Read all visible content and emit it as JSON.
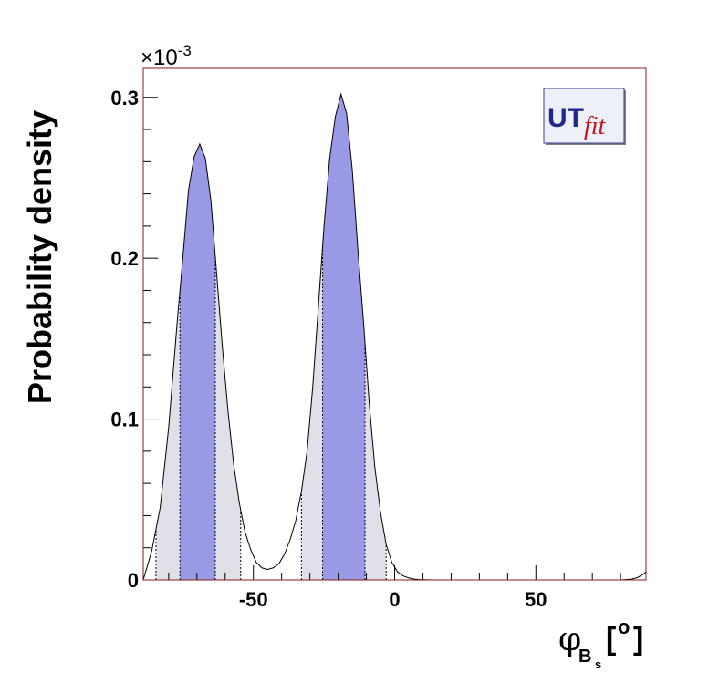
{
  "chart_data": {
    "type": "area",
    "title": "",
    "xlabel_symbol": "φ",
    "xlabel_sub": "B",
    "xlabel_subsub": "s",
    "xlabel_unit_open": "[",
    "xlabel_unit_sup": "o",
    "xlabel_unit_close": "]",
    "ylabel": "Probability density",
    "exponent_label": "×10",
    "exponent_power": "-3",
    "xlim": [
      -89,
      89
    ],
    "ylim": [
      0,
      0.000318
    ],
    "x_ticks": [
      -50,
      0,
      50
    ],
    "x_tick_labels": [
      "-50",
      "0",
      "50"
    ],
    "y_ticks": [
      0,
      0.0001,
      0.0002,
      0.0003
    ],
    "y_tick_labels": [
      "0",
      "0.1",
      "0.2",
      "0.3"
    ],
    "grid": false,
    "legend": "none",
    "colors": {
      "curve": "#000000",
      "region_68": "#9999e6",
      "region_95": "#dfe0e8",
      "frame": "#8b1a1a"
    },
    "series": [
      {
        "x": [
          -89,
          -86,
          -83,
          -80,
          -77,
          -75,
          -73,
          -71,
          -69,
          -67,
          -65,
          -63,
          -61,
          -59,
          -57,
          -55,
          -53,
          -51,
          -49,
          -47,
          -45,
          -43,
          -41,
          -39,
          -37,
          -35,
          -33,
          -31,
          -29,
          -27,
          -25,
          -23,
          -21,
          -19,
          -17,
          -15,
          -13,
          -11,
          -9,
          -7,
          -5,
          -3,
          -1,
          1,
          3,
          5,
          7,
          9,
          12,
          15,
          20,
          30,
          40,
          50,
          60,
          70,
          80,
          84,
          86,
          88,
          89
        ],
        "y": [
          0.0,
          1.8e-05,
          4.5e-05,
          9.5e-05,
          0.00016,
          0.0002,
          0.000242,
          0.000263,
          0.000271,
          0.000262,
          0.000235,
          0.00019,
          0.000145,
          0.000105,
          7.2e-05,
          4.8e-05,
          3e-05,
          1.9e-05,
          1.1e-05,
          7.5e-06,
          6.5e-06,
          7.5e-06,
          1e-05,
          1.6e-05,
          2.5e-05,
          3.7e-05,
          5.5e-05,
          8e-05,
          0.00012,
          0.00017,
          0.00022,
          0.000262,
          0.000288,
          0.000302,
          0.00029,
          0.000255,
          0.000205,
          0.00016,
          0.00011,
          7e-05,
          4.2e-05,
          2.2e-05,
          1.1e-05,
          5e-06,
          2.5e-06,
          1.2e-06,
          5e-07,
          2e-07,
          1e-07,
          0,
          0,
          0,
          0,
          0,
          0,
          0,
          0,
          5e-07,
          1.5e-06,
          3.5e-06,
          5e-06
        ]
      }
    ],
    "regions_68": [
      [
        -76,
        -63.5
      ],
      [
        -25.5,
        -10.5
      ]
    ],
    "regions_95": [
      [
        -84.5,
        -54.5
      ],
      [
        -33,
        -3
      ]
    ]
  }
}
